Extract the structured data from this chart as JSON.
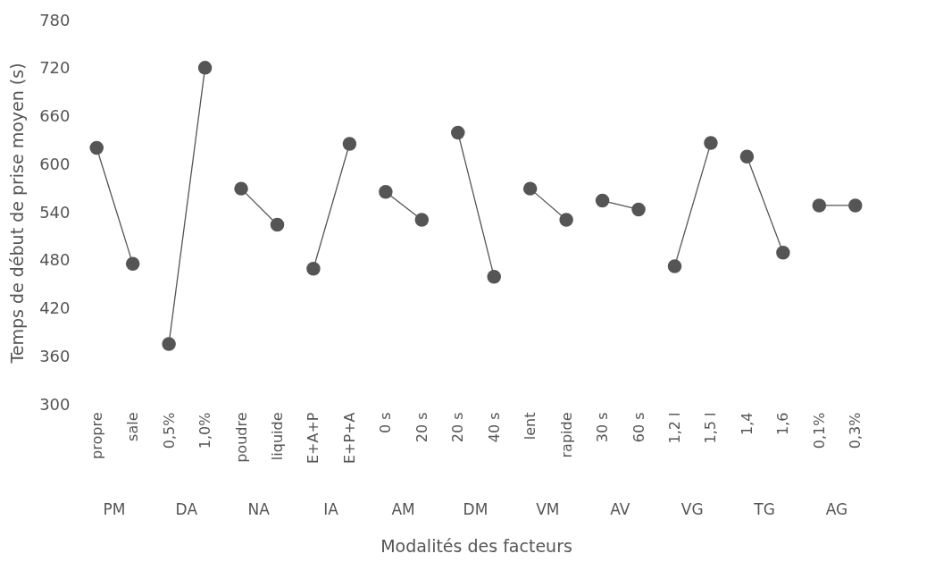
{
  "chart_data": {
    "type": "line",
    "ylabel": "Temps de début de prise moyen (s)",
    "xlabel": "Modalités des facteurs",
    "categories": [
      "propre",
      "sale",
      "0,5%",
      "1,0%",
      "poudre",
      "liquide",
      "E+A+P",
      "E+P+A",
      "0 s",
      "20 s",
      "20 s",
      "40 s",
      "lent",
      "rapide",
      "30 s",
      "60 s",
      "1,2 l",
      "1,5 l",
      "1,4",
      "1,6",
      "0,1%",
      "0,3%"
    ],
    "annotations": [
      "PM",
      "DA",
      "NA",
      "IA",
      "AM",
      "DM",
      "VM",
      "AV",
      "VG",
      "TG",
      "AG"
    ],
    "series": [
      {
        "color": "#555555",
        "values": [
          621,
          476,
          null,
          null,
          null,
          null,
          null,
          null,
          null,
          null,
          null,
          null,
          null,
          null,
          null,
          null,
          null,
          null,
          null,
          null,
          null,
          null
        ]
      },
      {
        "color": "#555555",
        "values": [
          null,
          null,
          376,
          721,
          null,
          null,
          null,
          null,
          null,
          null,
          null,
          null,
          null,
          null,
          null,
          null,
          null,
          null,
          null,
          null,
          null,
          null
        ]
      },
      {
        "color": "#555555",
        "values": [
          null,
          null,
          null,
          null,
          570,
          525,
          null,
          null,
          null,
          null,
          null,
          null,
          null,
          null,
          null,
          null,
          null,
          null,
          null,
          null,
          null,
          null
        ]
      },
      {
        "color": "#555555",
        "values": [
          null,
          null,
          null,
          null,
          null,
          null,
          470,
          626,
          null,
          null,
          null,
          null,
          null,
          null,
          null,
          null,
          null,
          null,
          null,
          null,
          null,
          null
        ]
      },
      {
        "color": "#555555",
        "values": [
          null,
          null,
          null,
          null,
          null,
          null,
          null,
          null,
          566,
          531,
          null,
          null,
          null,
          null,
          null,
          null,
          null,
          null,
          null,
          null,
          null,
          null
        ]
      },
      {
        "color": "#555555",
        "values": [
          null,
          null,
          null,
          null,
          null,
          null,
          null,
          null,
          null,
          null,
          640,
          460,
          null,
          null,
          null,
          null,
          null,
          null,
          null,
          null,
          null,
          null
        ]
      },
      {
        "color": "#555555",
        "values": [
          null,
          null,
          null,
          null,
          null,
          null,
          null,
          null,
          null,
          null,
          null,
          null,
          570,
          531,
          null,
          null,
          null,
          null,
          null,
          null,
          null,
          null
        ]
      },
      {
        "color": "#555555",
        "values": [
          null,
          null,
          null,
          null,
          null,
          null,
          null,
          null,
          null,
          null,
          null,
          null,
          null,
          null,
          555,
          544,
          null,
          null,
          null,
          null,
          null,
          null
        ]
      },
      {
        "color": "#555555",
        "values": [
          null,
          null,
          null,
          null,
          null,
          null,
          null,
          null,
          null,
          null,
          null,
          null,
          null,
          null,
          null,
          null,
          473,
          627,
          null,
          null,
          null,
          null
        ]
      },
      {
        "color": "#555555",
        "values": [
          null,
          null,
          null,
          null,
          null,
          null,
          null,
          null,
          null,
          null,
          null,
          null,
          null,
          null,
          null,
          null,
          null,
          null,
          610,
          490,
          null,
          null
        ]
      },
      {
        "color": "#555555",
        "values": [
          null,
          null,
          null,
          null,
          null,
          null,
          null,
          null,
          null,
          null,
          null,
          null,
          null,
          null,
          null,
          null,
          null,
          null,
          null,
          null,
          549,
          549
        ]
      }
    ],
    "ylim": [
      300,
      780
    ],
    "yticks": [
      300,
      360,
      420,
      480,
      540,
      600,
      660,
      720,
      780
    ],
    "grid": false,
    "legend": false,
    "marker": "circle",
    "line_style": "solid"
  }
}
